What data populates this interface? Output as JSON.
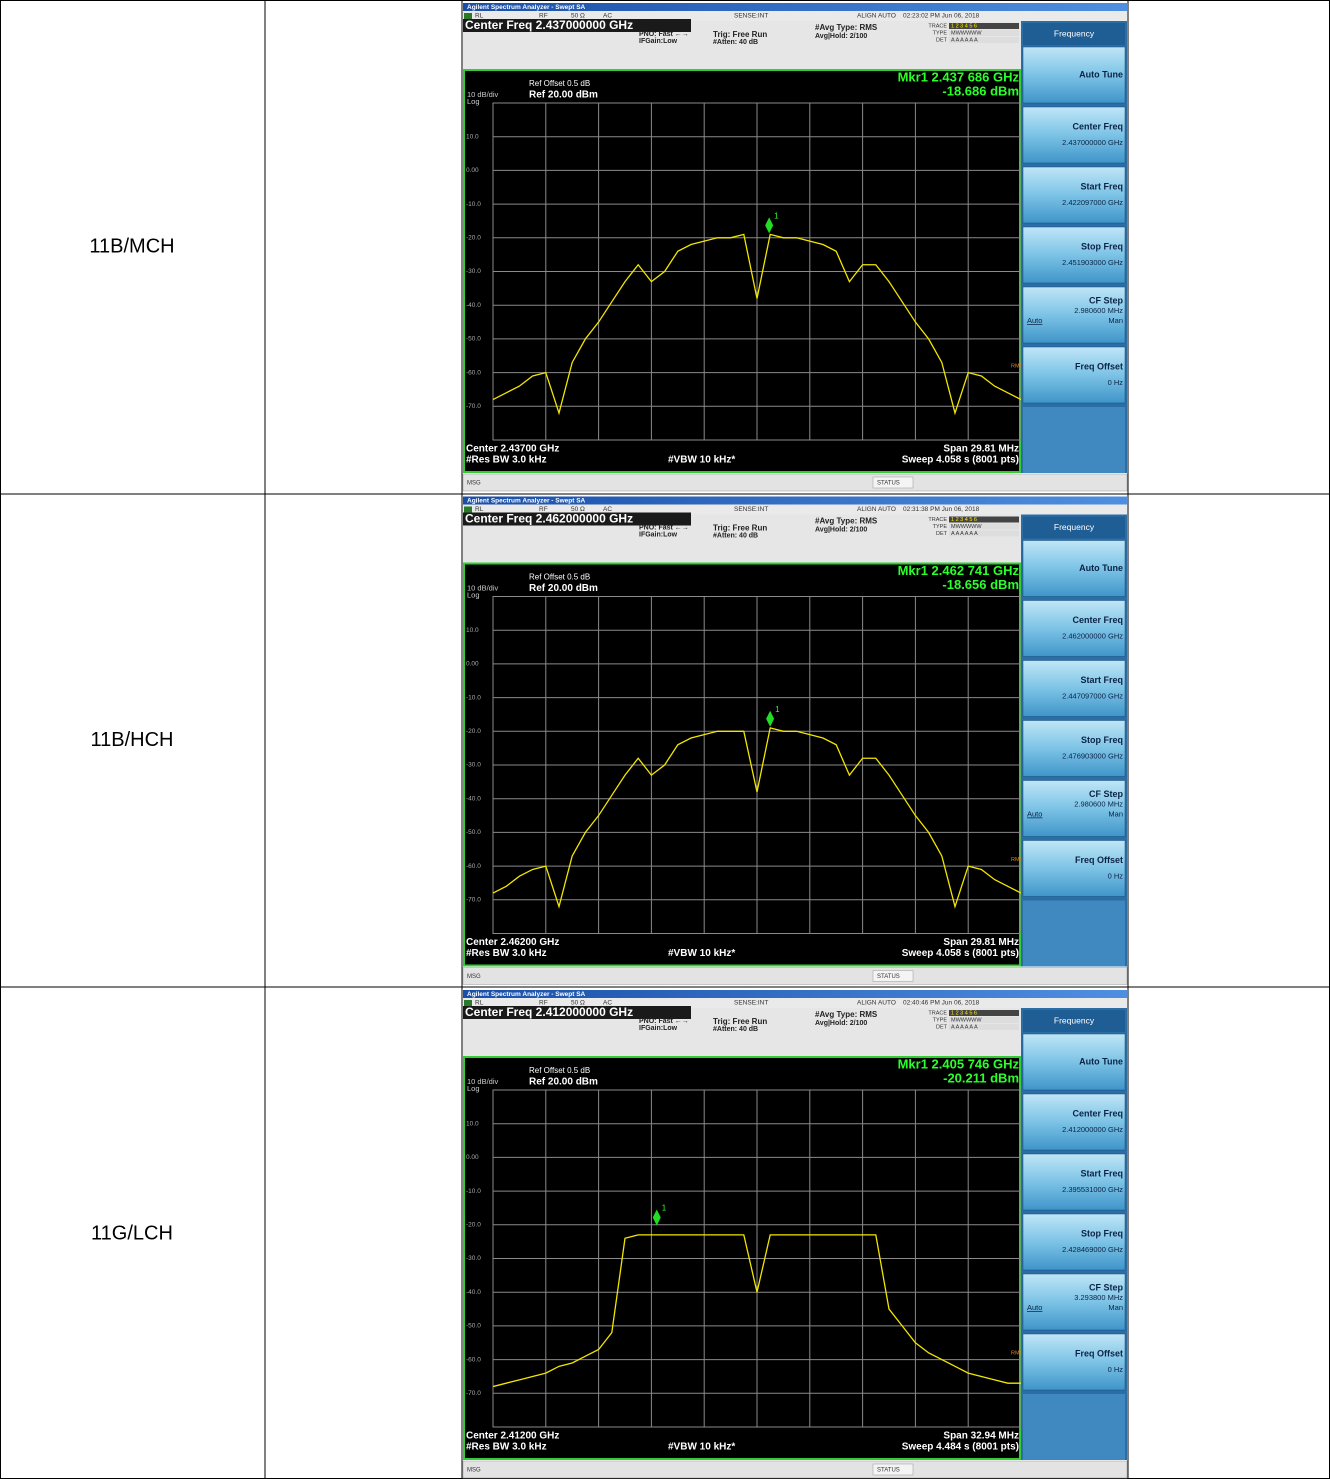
{
  "rows": [
    {
      "label": "11B/MCH",
      "screen": {
        "app_title": "Agilent Spectrum Analyzer - Swept SA",
        "status_items": [
          "RL",
          "RF",
          "50 Ω",
          "AC",
          "SENSE:INT",
          "ALIGN AUTO",
          "02:23:02 PM Jun 06, 2018"
        ],
        "center_freq": "Center Freq 2.437000000 GHz",
        "pno": "PNO: Fast ←→",
        "ifgain": "IFGain:Low",
        "trig": "Trig: Free Run",
        "atten": "#Atten: 40 dB",
        "avg_type": "#Avg Type: RMS",
        "avg_hold": "Avg|Hold: 2/100",
        "trace_lines": [
          [
            "TRACE",
            "1 2 3 4 5 6"
          ],
          [
            "TYPE",
            "MWWWWW"
          ],
          [
            "DET",
            "A A A A A A"
          ]
        ],
        "ref_offset": "Ref Offset 0.5 dB",
        "scale": "10 dB/div",
        "ref": "Ref 20.00 dBm",
        "log": "Log",
        "marker": {
          "label": "Mkr1 2.437 686 GHz",
          "value_label": "-18.686 dBm",
          "id": "1",
          "freq": 2.437686,
          "level": -18.686
        },
        "rms": "RMS",
        "center": "Center 2.43700 GHz",
        "span": "Span 29.81 MHz",
        "rbw": "#Res BW 3.0 kHz",
        "vbw": "#VBW 10 kHz*",
        "sweep": "Sweep  4.058 s (8001 pts)",
        "center_ghz": 2.437,
        "span_mhz": 29.81,
        "ylim": [
          -80,
          20
        ],
        "yticks": [
          {
            "value": 10,
            "label": "10.0"
          },
          {
            "value": 0,
            "label": "0.00"
          },
          {
            "value": -10,
            "label": "-10.0"
          },
          {
            "value": -20,
            "label": "-20.0"
          },
          {
            "value": -30,
            "label": "-30.0"
          },
          {
            "value": -40,
            "label": "-40.0"
          },
          {
            "value": -50,
            "label": "-50.0"
          },
          {
            "value": -60,
            "label": "-60.0"
          },
          {
            "value": -70,
            "label": "-70.0"
          }
        ],
        "trace": [
          -68,
          -66,
          -64,
          -61,
          -60,
          -72,
          -57,
          -50,
          -45,
          -39,
          -33,
          -28,
          -33,
          -30,
          -24,
          -22,
          -21,
          -20,
          -20,
          -19,
          -38,
          -19,
          -20,
          -20,
          -21,
          -22,
          -24,
          -33,
          -28,
          -28,
          -33,
          -39,
          -45,
          -50,
          -57,
          -72,
          -60,
          -61,
          -64,
          -66,
          -68
        ],
        "softkeys": {
          "header": "Frequency",
          "keys": [
            {
              "label": "Auto Tune"
            },
            {
              "label": "Center Freq",
              "value": "2.437000000 GHz"
            },
            {
              "label": "Start Freq",
              "value": "2.422097000 GHz"
            },
            {
              "label": "Stop Freq",
              "value": "2.451903000 GHz"
            },
            {
              "label": "CF Step",
              "value": "2.980600 MHz",
              "auto": "Auto",
              "man": "Man"
            },
            {
              "label": "Freq Offset",
              "value": "0 Hz"
            }
          ]
        },
        "msg": "MSG",
        "status": "STATUS"
      }
    },
    {
      "label": "11B/HCH",
      "screen": {
        "app_title": "Agilent Spectrum Analyzer - Swept SA",
        "status_items": [
          "RL",
          "RF",
          "50 Ω",
          "AC",
          "SENSE:INT",
          "ALIGN AUTO",
          "02:31:38 PM Jun 06, 2018"
        ],
        "center_freq": "Center Freq 2.462000000 GHz",
        "pno": "PNO: Fast ←→",
        "ifgain": "IFGain:Low",
        "trig": "Trig: Free Run",
        "atten": "#Atten: 40 dB",
        "avg_type": "#Avg Type: RMS",
        "avg_hold": "Avg|Hold: 2/100",
        "trace_lines": [
          [
            "TRACE",
            "1 2 3 4 5 6"
          ],
          [
            "TYPE",
            "MWWWWW"
          ],
          [
            "DET",
            "A A A A A A"
          ]
        ],
        "ref_offset": "Ref Offset 0.5 dB",
        "scale": "10 dB/div",
        "ref": "Ref 20.00 dBm",
        "log": "Log",
        "marker": {
          "label": "Mkr1 2.462 741 GHz",
          "value_label": "-18.656 dBm",
          "id": "1",
          "freq": 2.462741,
          "level": -18.656
        },
        "rms": "RMS",
        "center": "Center 2.46200 GHz",
        "span": "Span 29.81 MHz",
        "rbw": "#Res BW 3.0 kHz",
        "vbw": "#VBW 10 kHz*",
        "sweep": "Sweep  4.058 s (8001 pts)",
        "center_ghz": 2.462,
        "span_mhz": 29.81,
        "ylim": [
          -80,
          20
        ],
        "yticks": [
          {
            "value": 10,
            "label": "10.0"
          },
          {
            "value": 0,
            "label": "0.00"
          },
          {
            "value": -10,
            "label": "-10.0"
          },
          {
            "value": -20,
            "label": "-20.0"
          },
          {
            "value": -30,
            "label": "-30.0"
          },
          {
            "value": -40,
            "label": "-40.0"
          },
          {
            "value": -50,
            "label": "-50.0"
          },
          {
            "value": -60,
            "label": "-60.0"
          },
          {
            "value": -70,
            "label": "-70.0"
          }
        ],
        "trace": [
          -68,
          -66,
          -63,
          -61,
          -60,
          -72,
          -57,
          -50,
          -45,
          -39,
          -33,
          -28,
          -33,
          -30,
          -24,
          -22,
          -21,
          -20,
          -20,
          -20,
          -38,
          -19,
          -20,
          -20,
          -21,
          -22,
          -24,
          -33,
          -28,
          -28,
          -33,
          -39,
          -45,
          -50,
          -57,
          -72,
          -60,
          -61,
          -64,
          -66,
          -68
        ],
        "softkeys": {
          "header": "Frequency",
          "keys": [
            {
              "label": "Auto Tune"
            },
            {
              "label": "Center Freq",
              "value": "2.462000000 GHz"
            },
            {
              "label": "Start Freq",
              "value": "2.447097000 GHz"
            },
            {
              "label": "Stop Freq",
              "value": "2.476903000 GHz"
            },
            {
              "label": "CF Step",
              "value": "2.980600 MHz",
              "auto": "Auto",
              "man": "Man"
            },
            {
              "label": "Freq Offset",
              "value": "0 Hz"
            }
          ]
        },
        "msg": "MSG",
        "status": "STATUS"
      }
    },
    {
      "label": "11G/LCH",
      "screen": {
        "app_title": "Agilent Spectrum Analyzer - Swept SA",
        "status_items": [
          "RL",
          "RF",
          "50 Ω",
          "AC",
          "SENSE:INT",
          "ALIGN AUTO",
          "02:40:46 PM Jun 06, 2018"
        ],
        "center_freq": "Center Freq 2.412000000 GHz",
        "pno": "PNO: Fast ←→",
        "ifgain": "IFGain:Low",
        "trig": "Trig: Free Run",
        "atten": "#Atten: 40 dB",
        "avg_type": "#Avg Type: RMS",
        "avg_hold": "Avg|Hold: 2/100",
        "trace_lines": [
          [
            "TRACE",
            "1 2 3 4 5 6"
          ],
          [
            "TYPE",
            "MWWWWW"
          ],
          [
            "DET",
            "A A A A A A"
          ]
        ],
        "ref_offset": "Ref Offset 0.5 dB",
        "scale": "10 dB/div",
        "ref": "Ref 20.00 dBm",
        "log": "Log",
        "marker": {
          "label": "Mkr1 2.405 746 GHz",
          "value_label": "-20.211 dBm",
          "id": "1",
          "freq": 2.405746,
          "level": -20.211
        },
        "rms": "RMS",
        "center": "Center 2.41200 GHz",
        "span": "Span 32.94 MHz",
        "rbw": "#Res BW 3.0 kHz",
        "vbw": "#VBW 10 kHz*",
        "sweep": "Sweep  4.484 s (8001 pts)",
        "center_ghz": 2.412,
        "span_mhz": 32.94,
        "ylim": [
          -80,
          20
        ],
        "yticks": [
          {
            "value": 10,
            "label": "10.0"
          },
          {
            "value": 0,
            "label": "0.00"
          },
          {
            "value": -10,
            "label": "-10.0"
          },
          {
            "value": -20,
            "label": "-20.0"
          },
          {
            "value": -30,
            "label": "-30.0"
          },
          {
            "value": -40,
            "label": "-40.0"
          },
          {
            "value": -50,
            "label": "-50.0"
          },
          {
            "value": -60,
            "label": "-60.0"
          },
          {
            "value": -70,
            "label": "-70.0"
          }
        ],
        "trace": [
          -68,
          -67,
          -66,
          -65,
          -64,
          -62,
          -61,
          -59,
          -57,
          -52,
          -24,
          -23,
          -23,
          -23,
          -23,
          -23,
          -23,
          -23,
          -23,
          -23,
          -40,
          -23,
          -23,
          -23,
          -23,
          -23,
          -23,
          -23,
          -23,
          -23,
          -45,
          -50,
          -55,
          -58,
          -60,
          -62,
          -64,
          -65,
          -66,
          -67,
          -67
        ],
        "softkeys": {
          "header": "Frequency",
          "keys": [
            {
              "label": "Auto Tune"
            },
            {
              "label": "Center Freq",
              "value": "2.412000000 GHz"
            },
            {
              "label": "Start Freq",
              "value": "2.395531000 GHz"
            },
            {
              "label": "Stop Freq",
              "value": "2.428469000 GHz"
            },
            {
              "label": "CF Step",
              "value": "3.293800 MHz",
              "auto": "Auto",
              "man": "Man"
            },
            {
              "label": "Freq Offset",
              "value": "0 Hz"
            }
          ]
        },
        "msg": "MSG",
        "status": "STATUS"
      }
    }
  ]
}
